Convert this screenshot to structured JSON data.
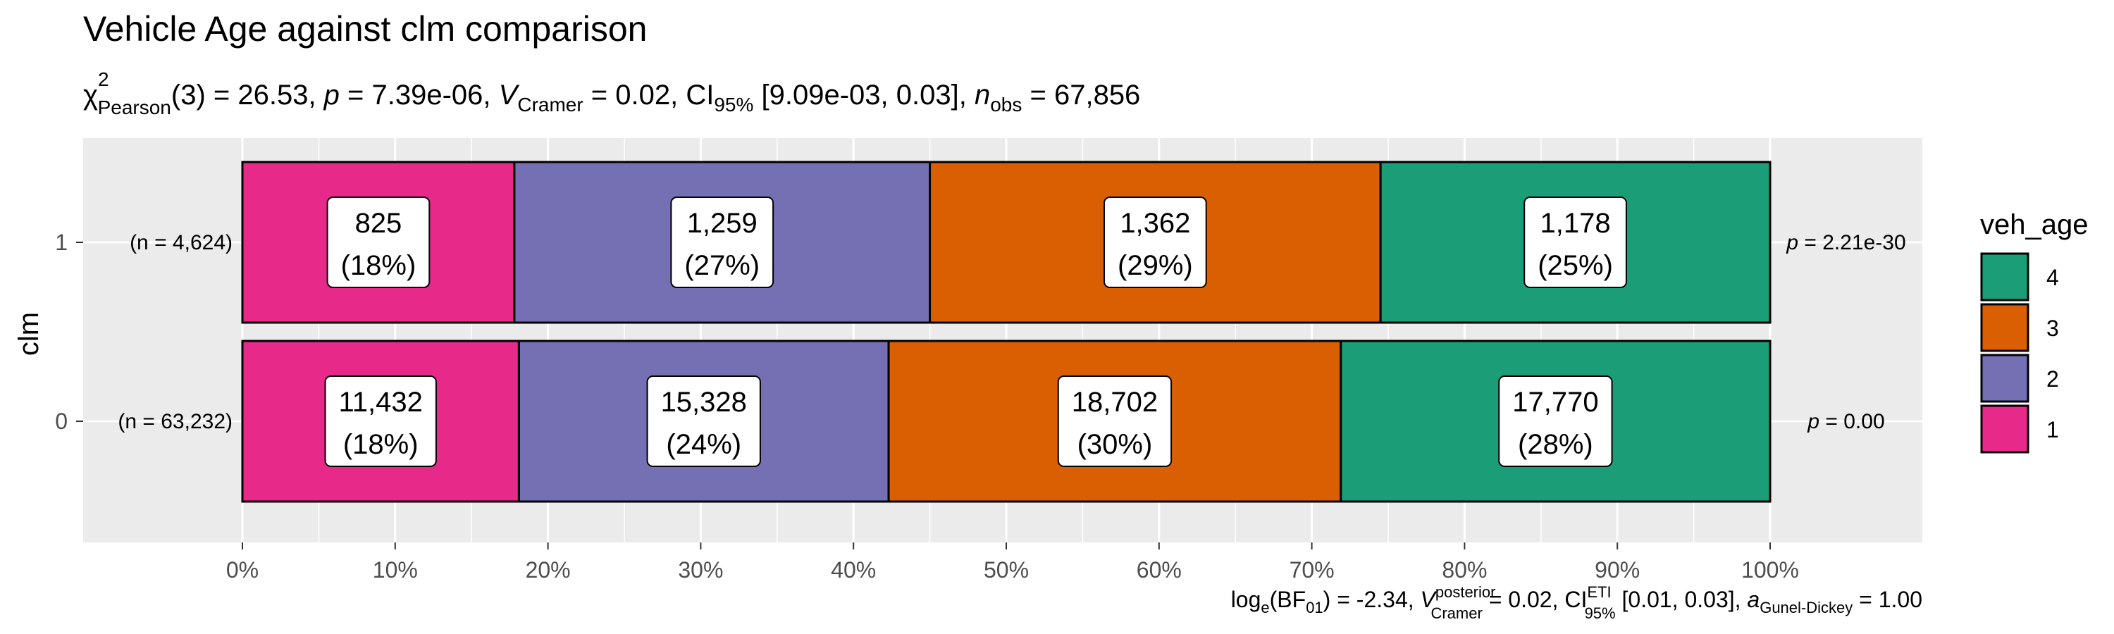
{
  "chart_data": {
    "type": "bar",
    "orientation": "horizontal",
    "stacked_percent": true,
    "title": "Vehicle Age against clm comparison",
    "subtitle": {
      "chi_symbol": "χ",
      "chi_sup": "2",
      "chi_sub": "Pearson",
      "df_text": "(3) = 26.53, ",
      "p_label": "p",
      "p_text": " = 7.39e-06, ",
      "v_symbol": "V",
      "v_sub": "Cramer",
      "v_text": " = 0.02, CI",
      "ci_sub": "95%",
      "ci_text": " [9.09e-03, 0.03], ",
      "n_label": "n",
      "n_sub": "obs",
      "n_text": " = 67,856"
    },
    "caption": {
      "log_text": "log",
      "log_sub": "e",
      "bf_text": "(BF",
      "bf_sub": "01",
      "bf_value": ") = -2.34, ",
      "v_symbol": "V",
      "v_sup": "posterior",
      "v_sub": "Cramer",
      "v_text": " = 0.02, CI",
      "ci_sup": "ETI",
      "ci_sub": "95%",
      "ci_text": " [0.01, 0.03], ",
      "a_symbol": "a",
      "a_sub": "Gunel-Dickey",
      "a_text": " = 1.00"
    },
    "ylabel": "clm",
    "xlabel": "",
    "xlim": [
      0,
      100
    ],
    "x_ticks": [
      "0%",
      "10%",
      "20%",
      "30%",
      "40%",
      "50%",
      "60%",
      "70%",
      "80%",
      "90%",
      "100%"
    ],
    "categories": [
      "1",
      "0"
    ],
    "n_labels": [
      "(n = 4,624)",
      "(n = 63,232)"
    ],
    "p_labels": [
      {
        "label": "p",
        "value": " = 2.21e-30"
      },
      {
        "label": "p",
        "value": " = 0.00"
      }
    ],
    "legend_title": "veh_age",
    "legend_position": "right",
    "grid": true,
    "series": [
      {
        "name": "1",
        "color": "#E7298A",
        "percent": [
          17.8,
          18.1
        ],
        "counts": [
          "825",
          "11,432"
        ],
        "pct_labels": [
          "(18%)",
          "(18%)"
        ]
      },
      {
        "name": "2",
        "color": "#7570B3",
        "percent": [
          27.2,
          24.2
        ],
        "counts": [
          "1,259",
          "15,328"
        ],
        "pct_labels": [
          "(27%)",
          "(24%)"
        ]
      },
      {
        "name": "3",
        "color": "#D95F02",
        "percent": [
          29.5,
          29.6
        ],
        "counts": [
          "1,362",
          "18,702"
        ],
        "pct_labels": [
          "(29%)",
          "(30%)"
        ]
      },
      {
        "name": "4",
        "color": "#1B9E77",
        "percent": [
          25.5,
          28.1
        ],
        "counts": [
          "1,178",
          "17,770"
        ],
        "pct_labels": [
          "(25%)",
          "(28%)"
        ]
      }
    ],
    "legend_order": [
      "4",
      "3",
      "2",
      "1"
    ]
  }
}
